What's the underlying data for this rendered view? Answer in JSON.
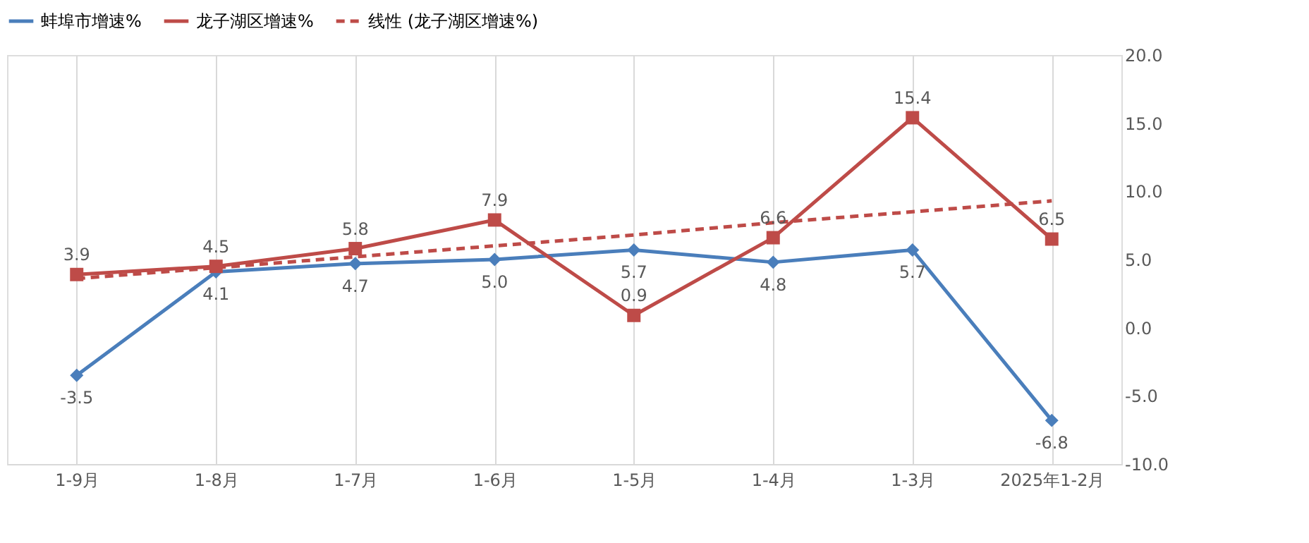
{
  "chart_data": {
    "type": "line",
    "categories": [
      "1-9月",
      "1-8月",
      "1-7月",
      "1-6月",
      "1-5月",
      "1-4月",
      "1-3月",
      "2025年1-2月"
    ],
    "series": [
      {
        "name": "蚌埠市增速%",
        "color": "#4a7ebb",
        "marker": "diamond",
        "line_style": "solid",
        "values": [
          -3.5,
          4.1,
          4.7,
          5.0,
          5.7,
          4.8,
          5.7,
          -6.8
        ],
        "value_labels": [
          "-3.5",
          "4.1",
          "4.7",
          "5.0",
          "5.7",
          "4.8",
          "5.7",
          "-6.8"
        ]
      },
      {
        "name": "龙子湖区增速%",
        "color": "#be4b48",
        "marker": "square",
        "line_style": "solid",
        "values": [
          3.9,
          4.5,
          5.8,
          7.9,
          0.9,
          6.6,
          15.4,
          6.5
        ],
        "value_labels": [
          "3.9",
          "4.5",
          "5.8",
          "7.9",
          "0.9",
          "6.6",
          "15.4",
          "6.5"
        ]
      },
      {
        "name": "线性 (龙子湖区增速%)",
        "color": "#be4b48",
        "marker": "none",
        "line_style": "dashed",
        "values": [
          3.6,
          4.4,
          5.2,
          6.0,
          6.8,
          7.7,
          8.5,
          9.3
        ]
      }
    ],
    "ylim": [
      -10,
      20
    ],
    "yticks": [
      {
        "value": -10,
        "label": "-10.0"
      },
      {
        "value": -5,
        "label": "-5.0"
      },
      {
        "value": 0,
        "label": "0.0"
      },
      {
        "value": 5,
        "label": "5.0"
      },
      {
        "value": 10,
        "label": "10.0"
      },
      {
        "value": 15,
        "label": "15.0"
      },
      {
        "value": 20,
        "label": "20.0"
      }
    ],
    "grid": "x",
    "legend": "top"
  }
}
